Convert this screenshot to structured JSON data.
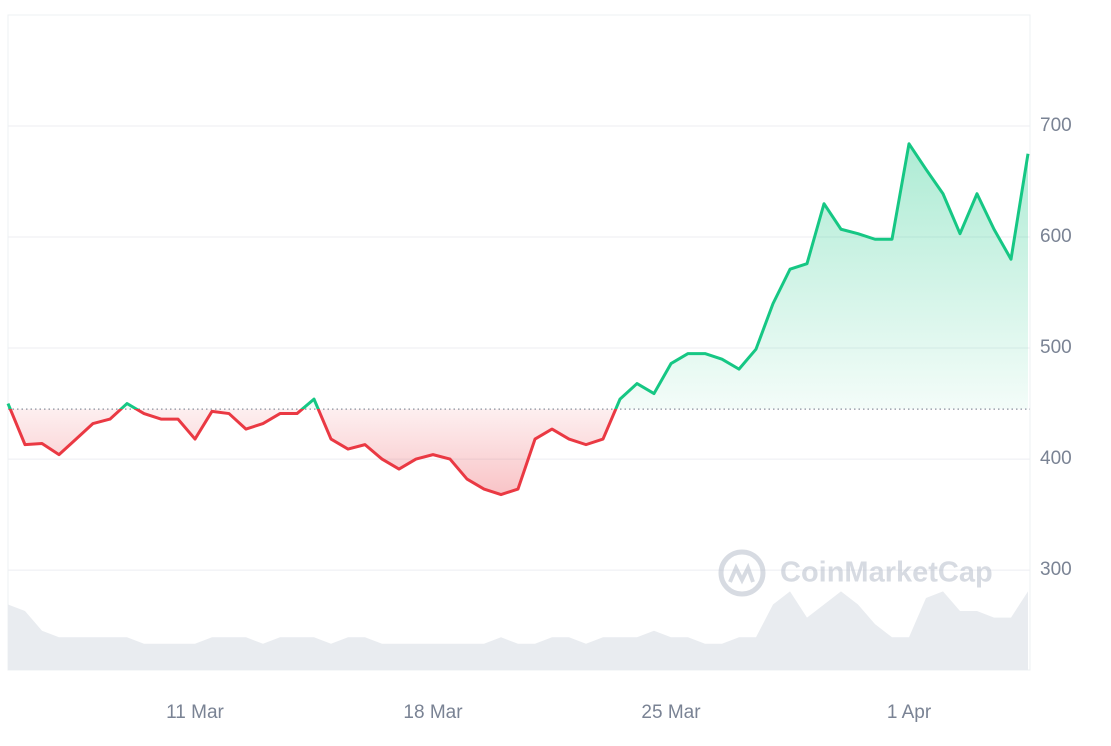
{
  "chart_data": {
    "type": "line",
    "categories": [
      null,
      null,
      null,
      null,
      null,
      null,
      null,
      null,
      null,
      null,
      null,
      "11 Mar",
      null,
      null,
      null,
      null,
      null,
      null,
      null,
      null,
      null,
      null,
      null,
      null,
      null,
      "18 Mar",
      null,
      null,
      null,
      null,
      null,
      null,
      null,
      null,
      null,
      null,
      null,
      null,
      null,
      "25 Mar",
      null,
      null,
      null,
      null,
      null,
      null,
      null,
      null,
      null,
      null,
      null,
      null,
      null,
      "1 Apr",
      null,
      null,
      null,
      null,
      null,
      null,
      null
    ],
    "series": [
      {
        "values": [
          450,
          413,
          414,
          404,
          418,
          432,
          436,
          450,
          441,
          436,
          436,
          418,
          443,
          441,
          427,
          432,
          441,
          441,
          454,
          418,
          409,
          413,
          400,
          391,
          400,
          404,
          400,
          382,
          373,
          368,
          373,
          418,
          427,
          418,
          413,
          418,
          454,
          468,
          459,
          486,
          495,
          495,
          490,
          481,
          499,
          540,
          571,
          576,
          630,
          607,
          603,
          598,
          598,
          684,
          661,
          639,
          603,
          639,
          607,
          580,
          675
        ],
        "color_up": "#16c784",
        "color_down": "#ea3943"
      },
      {
        "values": [
          10,
          9,
          6,
          5,
          5,
          5,
          5,
          5,
          4,
          4,
          4,
          4,
          5,
          5,
          5,
          4,
          5,
          5,
          5,
          4,
          5,
          5,
          4,
          4,
          4,
          4,
          4,
          4,
          4,
          5,
          4,
          4,
          5,
          5,
          4,
          5,
          5,
          5,
          6,
          5,
          5,
          4,
          4,
          5,
          5,
          10,
          12,
          8,
          10,
          12,
          10,
          7,
          5,
          5,
          11,
          12,
          9,
          9,
          8,
          8,
          12
        ],
        "axis": "y2",
        "color": "#e9ecf0"
      }
    ],
    "baseline": 445,
    "ylim": [
      210,
      800
    ],
    "yticks": [
      300,
      400,
      500,
      600,
      700
    ],
    "y2lim": [
      0,
      100
    ],
    "grid": true,
    "watermark": "CoinMarketCap"
  }
}
